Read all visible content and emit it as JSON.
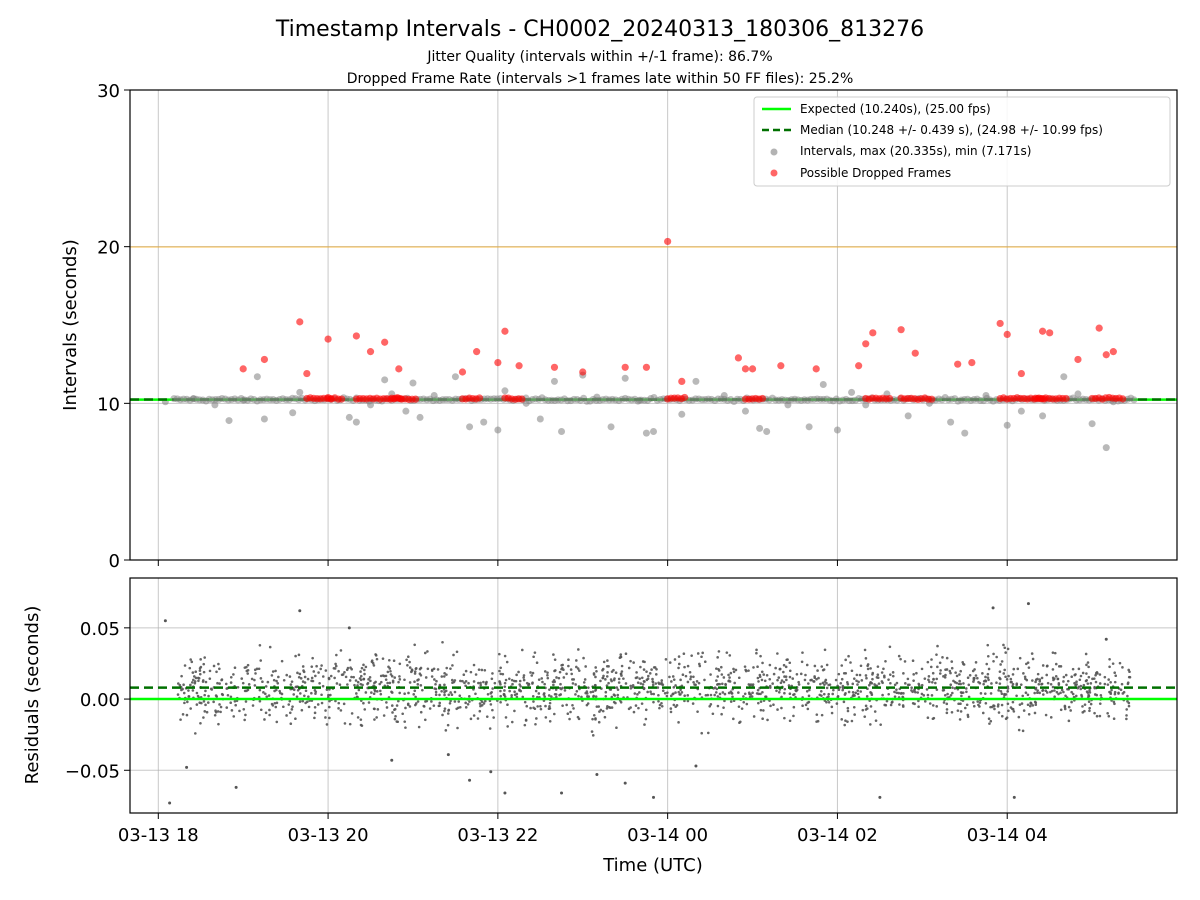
{
  "chart_data": [
    {
      "type": "scatter",
      "title": "Timestamp Intervals - CH0002_20240313_180306_813276",
      "subtitle_1": "Jitter Quality (intervals within +/-1 frame): 86.7%",
      "subtitle_2": "Dropped Frame Rate (intervals >1 frames late within 50 FF files): 25.2%",
      "ylabel": "Intervals (seconds)",
      "ylim": [
        0,
        30
      ],
      "y_ticks": [
        "0",
        "10",
        "20",
        "30"
      ],
      "x_start": "2024-03-13 17:40",
      "x_end": "2024-03-14 06:00",
      "grid": true,
      "legend_position": "top-right",
      "legend": {
        "expected": "Expected (10.240s), (25.00 fps)",
        "median": "Median (10.248 +/- 0.439 s), (24.98 +/- 10.99 fps)",
        "intervals": "Intervals, max (20.335s), min (7.171s)",
        "dropped": "Possible Dropped Frames"
      },
      "expected_value": 10.24,
      "median_value": 10.248,
      "threshold_value": 20.0,
      "max_interval": {
        "time": "2024-03-14 00:00",
        "value": 20.335
      },
      "min_interval": {
        "time": "2024-03-14 05:10",
        "value": 7.171
      },
      "series": [
        {
          "name": "Intervals, max (20.335s), min (7.171s)",
          "color": "#808080",
          "points": [
            [
              "2024-03-13 18:05",
              10.1
            ],
            [
              "2024-03-13 18:25",
              10.3
            ],
            [
              "2024-03-13 18:40",
              9.9
            ],
            [
              "2024-03-13 18:50",
              8.9
            ],
            [
              "2024-03-13 19:00",
              10.2
            ],
            [
              "2024-03-13 19:10",
              11.7
            ],
            [
              "2024-03-13 19:15",
              9.0
            ],
            [
              "2024-03-13 19:35",
              9.4
            ],
            [
              "2024-03-13 19:40",
              10.7
            ],
            [
              "2024-03-13 20:15",
              9.1
            ],
            [
              "2024-03-13 20:20",
              8.8
            ],
            [
              "2024-03-13 20:30",
              9.9
            ],
            [
              "2024-03-13 20:40",
              11.5
            ],
            [
              "2024-03-13 20:45",
              10.6
            ],
            [
              "2024-03-13 20:55",
              9.5
            ],
            [
              "2024-03-13 21:00",
              11.3
            ],
            [
              "2024-03-13 21:05",
              9.1
            ],
            [
              "2024-03-13 21:15",
              10.5
            ],
            [
              "2024-03-13 21:30",
              11.7
            ],
            [
              "2024-03-13 21:40",
              8.5
            ],
            [
              "2024-03-13 21:50",
              8.8
            ],
            [
              "2024-03-13 22:00",
              8.3
            ],
            [
              "2024-03-13 22:05",
              10.8
            ],
            [
              "2024-03-13 22:20",
              10.0
            ],
            [
              "2024-03-13 22:30",
              9.0
            ],
            [
              "2024-03-13 22:40",
              11.4
            ],
            [
              "2024-03-13 22:45",
              8.2
            ],
            [
              "2024-03-13 23:00",
              11.8
            ],
            [
              "2024-03-13 23:10",
              10.4
            ],
            [
              "2024-03-13 23:20",
              8.5
            ],
            [
              "2024-03-13 23:30",
              11.6
            ],
            [
              "2024-03-13 23:40",
              10.2
            ],
            [
              "2024-03-13 23:45",
              8.1
            ],
            [
              "2024-03-13 23:50",
              8.2
            ],
            [
              "2024-03-14 00:10",
              9.3
            ],
            [
              "2024-03-14 00:20",
              11.4
            ],
            [
              "2024-03-14 00:40",
              10.5
            ],
            [
              "2024-03-14 00:55",
              9.5
            ],
            [
              "2024-03-14 01:05",
              8.4
            ],
            [
              "2024-03-14 01:10",
              8.2
            ],
            [
              "2024-03-14 01:25",
              9.9
            ],
            [
              "2024-03-14 01:40",
              8.5
            ],
            [
              "2024-03-14 01:50",
              11.2
            ],
            [
              "2024-03-14 02:00",
              8.3
            ],
            [
              "2024-03-14 02:10",
              10.7
            ],
            [
              "2024-03-14 02:20",
              9.9
            ],
            [
              "2024-03-14 02:35",
              10.6
            ],
            [
              "2024-03-14 02:50",
              9.2
            ],
            [
              "2024-03-14 03:05",
              10.0
            ],
            [
              "2024-03-14 03:20",
              8.8
            ],
            [
              "2024-03-14 03:30",
              8.1
            ],
            [
              "2024-03-14 03:45",
              10.5
            ],
            [
              "2024-03-14 04:00",
              8.6
            ],
            [
              "2024-03-14 04:10",
              9.5
            ],
            [
              "2024-03-14 04:25",
              9.2
            ],
            [
              "2024-03-14 04:40",
              11.7
            ],
            [
              "2024-03-14 04:50",
              10.6
            ],
            [
              "2024-03-14 05:00",
              8.7
            ],
            [
              "2024-03-14 05:10",
              7.171
            ],
            [
              "2024-03-14 05:15",
              10.1
            ]
          ]
        },
        {
          "name": "Possible Dropped Frames",
          "color": "#ff0000",
          "points": [
            [
              "2024-03-13 19:00",
              12.2
            ],
            [
              "2024-03-13 19:15",
              12.8
            ],
            [
              "2024-03-13 19:40",
              15.2
            ],
            [
              "2024-03-13 19:45",
              11.9
            ],
            [
              "2024-03-13 20:00",
              14.1
            ],
            [
              "2024-03-13 20:20",
              14.3
            ],
            [
              "2024-03-13 20:30",
              13.3
            ],
            [
              "2024-03-13 20:40",
              13.9
            ],
            [
              "2024-03-13 20:50",
              12.2
            ],
            [
              "2024-03-13 21:35",
              12.0
            ],
            [
              "2024-03-13 21:45",
              13.3
            ],
            [
              "2024-03-13 22:00",
              12.6
            ],
            [
              "2024-03-13 22:05",
              14.6
            ],
            [
              "2024-03-13 22:15",
              12.4
            ],
            [
              "2024-03-13 22:40",
              12.3
            ],
            [
              "2024-03-13 23:00",
              12.0
            ],
            [
              "2024-03-13 23:30",
              12.3
            ],
            [
              "2024-03-13 23:45",
              12.3
            ],
            [
              "2024-03-14 00:00",
              20.335
            ],
            [
              "2024-03-14 00:10",
              11.4
            ],
            [
              "2024-03-14 00:50",
              12.9
            ],
            [
              "2024-03-14 00:55",
              12.2
            ],
            [
              "2024-03-14 01:00",
              12.2
            ],
            [
              "2024-03-14 01:20",
              12.4
            ],
            [
              "2024-03-14 01:45",
              12.2
            ],
            [
              "2024-03-14 02:15",
              12.4
            ],
            [
              "2024-03-14 02:20",
              13.8
            ],
            [
              "2024-03-14 02:25",
              14.5
            ],
            [
              "2024-03-14 02:45",
              14.7
            ],
            [
              "2024-03-14 02:55",
              13.2
            ],
            [
              "2024-03-14 03:25",
              12.5
            ],
            [
              "2024-03-14 03:35",
              12.6
            ],
            [
              "2024-03-14 03:55",
              15.1
            ],
            [
              "2024-03-14 04:00",
              14.4
            ],
            [
              "2024-03-14 04:10",
              11.9
            ],
            [
              "2024-03-14 04:25",
              14.6
            ],
            [
              "2024-03-14 04:30",
              14.5
            ],
            [
              "2024-03-14 04:50",
              12.8
            ],
            [
              "2024-03-14 05:05",
              14.8
            ],
            [
              "2024-03-14 05:10",
              13.1
            ],
            [
              "2024-03-14 05:15",
              13.3
            ]
          ]
        }
      ]
    },
    {
      "type": "scatter",
      "ylabel": "Residuals (seconds)",
      "xlabel": "Time (UTC)",
      "ylim": [
        -0.08,
        0.085
      ],
      "y_ticks": [
        "−0.05",
        "0.00",
        "0.05"
      ],
      "x_ticks": [
        "03-13 18",
        "03-13 20",
        "03-13 22",
        "03-14 00",
        "03-14 02",
        "03-14 04"
      ],
      "expected_residual": 0.0,
      "median_residual": 0.008,
      "grid": true,
      "series": [
        {
          "color": "#555555",
          "points": [
            [
              "2024-03-13 18:05",
              0.055
            ],
            [
              "2024-03-13 18:08",
              -0.073
            ],
            [
              "2024-03-13 18:20",
              -0.048
            ],
            [
              "2024-03-13 18:55",
              -0.062
            ],
            [
              "2024-03-13 19:40",
              0.062
            ],
            [
              "2024-03-13 20:15",
              0.05
            ],
            [
              "2024-03-13 20:45",
              -0.043
            ],
            [
              "2024-03-13 21:25",
              -0.039
            ],
            [
              "2024-03-13 21:40",
              -0.057
            ],
            [
              "2024-03-13 21:55",
              -0.051
            ],
            [
              "2024-03-13 22:05",
              -0.066
            ],
            [
              "2024-03-13 22:45",
              -0.066
            ],
            [
              "2024-03-13 23:10",
              -0.053
            ],
            [
              "2024-03-13 23:30",
              -0.059
            ],
            [
              "2024-03-13 23:50",
              -0.069
            ],
            [
              "2024-03-14 00:20",
              -0.047
            ],
            [
              "2024-03-14 02:30",
              -0.069
            ],
            [
              "2024-03-14 03:50",
              0.064
            ],
            [
              "2024-03-14 04:05",
              -0.069
            ],
            [
              "2024-03-14 04:15",
              0.067
            ],
            [
              "2024-03-14 05:10",
              0.042
            ]
          ]
        }
      ]
    }
  ]
}
